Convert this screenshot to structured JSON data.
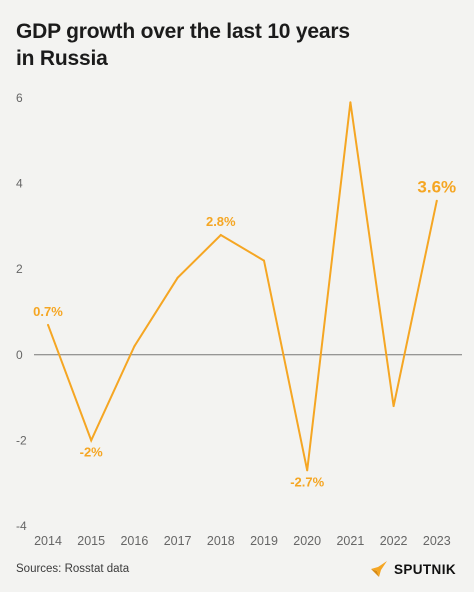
{
  "header": {
    "title_line1": "GDP growth over the last 10 years",
    "title_line2": "in Russia"
  },
  "footer": {
    "source": "Sources: Rosstat data",
    "brand": "SPUTNIK"
  },
  "colors": {
    "line": "#f5a623",
    "label": "#f5a623",
    "zero_line": "#777777",
    "axis_text": "#666666",
    "background": "#f3f3f1"
  },
  "icons": {
    "brand_mark": "sputnik-logo-icon"
  },
  "chart_data": {
    "type": "line",
    "title": "GDP growth over the last 10 years in Russia",
    "xlabel": "",
    "ylabel": "",
    "x": [
      "2014",
      "2015",
      "2016",
      "2017",
      "2018",
      "2019",
      "2020",
      "2021",
      "2022",
      "2023"
    ],
    "series": [
      {
        "values": [
          0.7,
          -2.0,
          0.2,
          1.8,
          2.8,
          2.2,
          -2.7,
          5.9,
          -1.2,
          3.6
        ]
      }
    ],
    "ylim": [
      -4,
      6
    ],
    "yticks": [
      -4,
      -2,
      0,
      2,
      4,
      6
    ],
    "grid": false,
    "zero_line": true,
    "data_labels": [
      {
        "x": "2014",
        "text": "0.7%",
        "pos": "above"
      },
      {
        "x": "2015",
        "text": "-2%",
        "pos": "below"
      },
      {
        "x": "2018",
        "text": "2.8%",
        "pos": "above"
      },
      {
        "x": "2020",
        "text": "-2.7%",
        "pos": "below"
      },
      {
        "x": "2023",
        "text": "3.6%",
        "pos": "above",
        "emphasis": true
      }
    ]
  }
}
